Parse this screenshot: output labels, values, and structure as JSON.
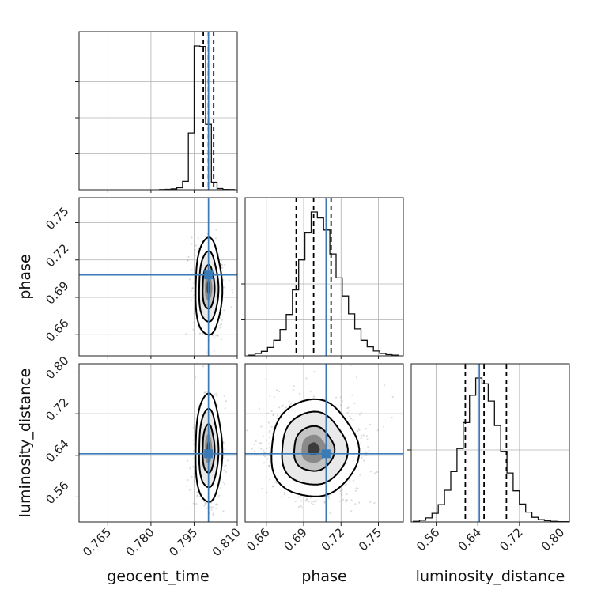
{
  "chart_data": {
    "type": "corner",
    "parameters": [
      "geocent_time",
      "phase",
      "luminosity_distance"
    ],
    "truths": {
      "geocent_time": 0.8,
      "phase": 0.708,
      "luminosity_distance": 0.643
    },
    "quantiles": {
      "geocent_time": [
        0.7982,
        0.8,
        0.8018
      ],
      "phase": [
        0.684,
        0.698,
        0.712
      ],
      "luminosity_distance": [
        0.616,
        0.652,
        0.695
      ]
    },
    "axes": {
      "geocent_time": {
        "range": [
          0.755,
          0.81
        ],
        "ticks": [
          0.765,
          0.78,
          0.795,
          0.81
        ],
        "tick_labels": [
          "0.765",
          "0.780",
          "0.795",
          "0.810"
        ]
      },
      "phase": {
        "range": [
          0.643,
          0.77
        ],
        "ticks": [
          0.66,
          0.69,
          0.72,
          0.75
        ],
        "tick_labels": [
          "0.66",
          "0.69",
          "0.72",
          "0.75"
        ]
      },
      "luminosity_distance": {
        "range": [
          0.512,
          0.816
        ],
        "ticks": [
          0.56,
          0.64,
          0.72,
          0.8
        ],
        "tick_labels": [
          "0.56",
          "0.64",
          "0.72",
          "0.80"
        ]
      }
    },
    "histograms": {
      "geocent_time": {
        "edges": [
          0.783,
          0.785,
          0.787,
          0.789,
          0.791,
          0.793,
          0.795,
          0.797,
          0.799,
          0.801,
          0.803,
          0.805,
          0.807,
          0.809
        ],
        "counts": [
          1,
          3,
          6,
          14,
          58,
          395,
          1000,
          996,
          455,
          52,
          8,
          2,
          1
        ]
      },
      "phase": {
        "edges": [
          0.646,
          0.651,
          0.656,
          0.661,
          0.666,
          0.671,
          0.676,
          0.681,
          0.686,
          0.691,
          0.696,
          0.701,
          0.706,
          0.711,
          0.716,
          0.721,
          0.726,
          0.731,
          0.736,
          0.741,
          0.746,
          0.751,
          0.756,
          0.761,
          0.766
        ],
        "counts": [
          2,
          8,
          15,
          28,
          52,
          88,
          138,
          220,
          320,
          410,
          480,
          460,
          420,
          340,
          260,
          200,
          140,
          90,
          52,
          30,
          16,
          8,
          4,
          2
        ]
      },
      "luminosity_distance": {
        "edges": [
          0.516,
          0.528,
          0.54,
          0.552,
          0.564,
          0.576,
          0.588,
          0.6,
          0.612,
          0.624,
          0.636,
          0.648,
          0.66,
          0.672,
          0.684,
          0.696,
          0.708,
          0.72,
          0.732,
          0.744,
          0.756,
          0.768,
          0.78,
          0.792,
          0.804,
          0.816
        ],
        "counts": [
          2,
          6,
          14,
          30,
          60,
          110,
          175,
          255,
          345,
          440,
          500,
          480,
          420,
          335,
          245,
          170,
          108,
          62,
          34,
          16,
          8,
          4,
          2,
          1,
          1
        ]
      }
    },
    "grid": true,
    "legend": "none"
  }
}
